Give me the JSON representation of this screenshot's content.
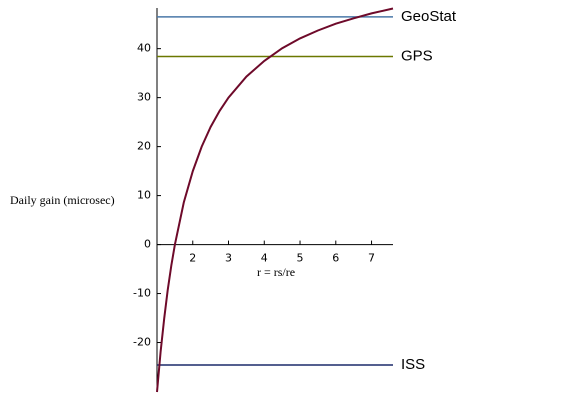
{
  "chart_data": {
    "type": "line",
    "xlabel": "r = rs/re",
    "ylabel": "Daily gain (microsec)",
    "x": [
      1,
      1.1,
      1.2,
      1.3,
      1.4,
      1.5,
      1.75,
      2,
      2.25,
      2.5,
      2.75,
      3,
      3.5,
      4,
      4.5,
      5,
      5.5,
      6,
      6.5,
      7,
      7.6
    ],
    "values": [
      -30.1,
      -21.9,
      -15.1,
      -9.3,
      -4.3,
      0,
      8.6,
      15.0,
      20.0,
      24.0,
      27.3,
      30.0,
      34.3,
      37.5,
      40.1,
      42.1,
      43.7,
      45.1,
      46.2,
      47.2,
      48.2
    ],
    "color": "#6e0a2a",
    "reference_lines": [
      {
        "name": "GeoStat",
        "value": 46.5,
        "color": "#4a78a8"
      },
      {
        "name": "GPS",
        "value": 38.4,
        "color": "#6b7800"
      },
      {
        "name": "ISS",
        "value": -24.6,
        "color": "#1c2a6a"
      }
    ],
    "xlim": [
      1,
      7.6
    ],
    "ylim": [
      -30.1,
      48.3
    ],
    "xticks": [
      2,
      3,
      4,
      5,
      6,
      7
    ],
    "yticks": [
      -20,
      -10,
      0,
      10,
      20,
      30,
      40
    ]
  }
}
